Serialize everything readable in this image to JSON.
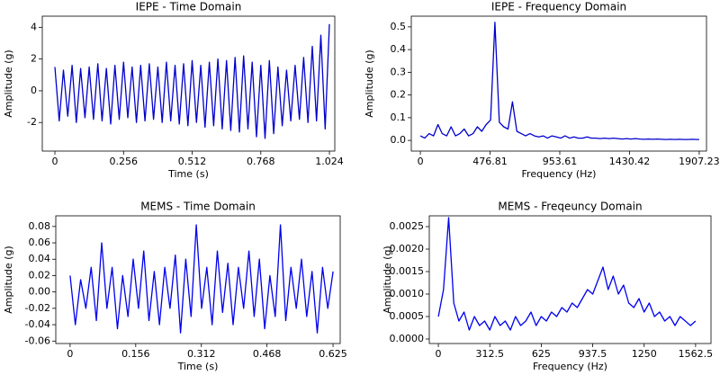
{
  "chart_data": [
    {
      "type": "line",
      "title": "IEPE - Time Domain",
      "xlabel": "Time (s)",
      "ylabel": "Amplitude (g)",
      "color": "#0000cc",
      "x": [
        0,
        0.016,
        0.032,
        0.048,
        0.064,
        0.08,
        0.096,
        0.112,
        0.128,
        0.144,
        0.16,
        0.176,
        0.192,
        0.208,
        0.224,
        0.24,
        0.256,
        0.272,
        0.288,
        0.304,
        0.32,
        0.336,
        0.352,
        0.368,
        0.384,
        0.4,
        0.416,
        0.432,
        0.448,
        0.464,
        0.48,
        0.496,
        0.512,
        0.528,
        0.544,
        0.56,
        0.576,
        0.592,
        0.608,
        0.624,
        0.64,
        0.656,
        0.672,
        0.688,
        0.704,
        0.72,
        0.736,
        0.752,
        0.768,
        0.784,
        0.8,
        0.816,
        0.832,
        0.848,
        0.864,
        0.88,
        0.896,
        0.912,
        0.928,
        0.944,
        0.96,
        0.976,
        0.992,
        1.008,
        1.024
      ],
      "values": [
        1.5,
        -1.9,
        1.3,
        -1.6,
        1.6,
        -2.0,
        1.4,
        -1.7,
        1.5,
        -1.8,
        1.7,
        -1.9,
        1.4,
        -2.1,
        1.6,
        -1.8,
        1.8,
        -1.7,
        1.5,
        -2.0,
        1.6,
        -1.9,
        1.7,
        -1.8,
        1.5,
        -2.0,
        1.8,
        -1.9,
        1.6,
        -2.1,
        1.7,
        -2.2,
        1.9,
        -2.0,
        1.6,
        -2.3,
        1.8,
        -2.2,
        2.0,
        -2.4,
        1.9,
        -2.5,
        2.1,
        -2.6,
        2.2,
        -2.4,
        1.8,
        -2.9,
        1.6,
        -3.0,
        1.9,
        -2.7,
        1.5,
        -2.2,
        1.3,
        -1.9,
        1.6,
        -1.8,
        2.1,
        -2.0,
        2.8,
        -1.9,
        3.5,
        -2.4,
        4.2
      ],
      "xlim": [
        -0.047,
        1.044
      ],
      "ylim": [
        -3.8,
        4.7
      ],
      "xticks": [
        0,
        0.256,
        0.512,
        0.768,
        1.024
      ],
      "yticks": [
        -2,
        0,
        2,
        4
      ]
    },
    {
      "type": "line",
      "title": "IEPE - Frequency Domain",
      "xlabel": "Frequency (Hz)",
      "ylabel": "Amplitude (g)",
      "color": "#0000cc",
      "x": [
        0,
        30,
        60,
        90,
        120,
        150,
        180,
        210,
        240,
        270,
        300,
        330,
        360,
        390,
        420,
        450,
        480,
        510,
        540,
        570,
        600,
        630,
        660,
        690,
        720,
        750,
        780,
        810,
        840,
        870,
        900,
        930,
        960,
        990,
        1020,
        1050,
        1080,
        1110,
        1140,
        1170,
        1200,
        1230,
        1260,
        1290,
        1320,
        1350,
        1380,
        1410,
        1440,
        1470,
        1500,
        1530,
        1560,
        1590,
        1620,
        1650,
        1680,
        1710,
        1740,
        1770,
        1800,
        1830,
        1860,
        1890,
        1907.23
      ],
      "values": [
        0.02,
        0.01,
        0.03,
        0.02,
        0.07,
        0.03,
        0.02,
        0.06,
        0.02,
        0.03,
        0.05,
        0.02,
        0.03,
        0.06,
        0.04,
        0.07,
        0.09,
        0.52,
        0.08,
        0.06,
        0.05,
        0.17,
        0.04,
        0.03,
        0.02,
        0.03,
        0.02,
        0.015,
        0.02,
        0.01,
        0.02,
        0.015,
        0.01,
        0.02,
        0.01,
        0.015,
        0.01,
        0.01,
        0.015,
        0.01,
        0.01,
        0.008,
        0.01,
        0.008,
        0.01,
        0.008,
        0.006,
        0.008,
        0.006,
        0.008,
        0.006,
        0.005,
        0.006,
        0.005,
        0.006,
        0.005,
        0.004,
        0.005,
        0.004,
        0.005,
        0.004,
        0.004,
        0.005,
        0.004,
        0.004
      ],
      "xlim": [
        -62,
        1957
      ],
      "ylim": [
        -0.047,
        0.547
      ],
      "xticks": [
        0,
        476.81,
        953.61,
        1430.42,
        1907.23
      ],
      "yticks": [
        {
          "value": 0,
          "label": "0.0"
        },
        0.1,
        0.2,
        0.3,
        0.4,
        0.5
      ]
    },
    {
      "type": "line",
      "title": "MEMS - Time Domain",
      "xlabel": "Time (s)",
      "ylabel": "Amplitude (g)",
      "color": "#0000ee",
      "x": [
        0,
        0.0125,
        0.025,
        0.0375,
        0.05,
        0.0625,
        0.075,
        0.0875,
        0.1,
        0.1125,
        0.125,
        0.1375,
        0.15,
        0.1625,
        0.175,
        0.1875,
        0.2,
        0.2125,
        0.225,
        0.2375,
        0.25,
        0.2625,
        0.275,
        0.2875,
        0.3,
        0.3125,
        0.325,
        0.3375,
        0.35,
        0.3625,
        0.375,
        0.3875,
        0.4,
        0.4125,
        0.425,
        0.4375,
        0.45,
        0.4625,
        0.475,
        0.4875,
        0.5,
        0.5125,
        0.525,
        0.5375,
        0.55,
        0.5625,
        0.575,
        0.5875,
        0.6,
        0.6125,
        0.625
      ],
      "values": [
        0.02,
        -0.04,
        0.015,
        -0.02,
        0.03,
        -0.035,
        0.06,
        -0.02,
        0.03,
        -0.045,
        0.02,
        -0.03,
        0.04,
        -0.02,
        0.05,
        -0.035,
        0.025,
        -0.04,
        0.03,
        -0.02,
        0.045,
        -0.05,
        0.04,
        -0.03,
        0.082,
        -0.02,
        0.03,
        -0.04,
        0.05,
        -0.025,
        0.035,
        -0.04,
        0.03,
        -0.02,
        0.05,
        -0.03,
        0.04,
        -0.045,
        0.02,
        -0.03,
        0.082,
        -0.035,
        0.03,
        -0.02,
        0.04,
        -0.03,
        0.025,
        -0.05,
        0.03,
        -0.02,
        0.025
      ],
      "xlim": [
        -0.034,
        0.642
      ],
      "ylim": [
        -0.063,
        0.093
      ],
      "xticks": [
        0,
        0.156,
        0.312,
        0.468,
        0.625
      ],
      "yticks": [
        -0.06,
        -0.04,
        -0.02,
        {
          "value": 0,
          "label": "0.00"
        },
        0.02,
        0.04,
        0.06,
        0.08
      ]
    },
    {
      "type": "line",
      "title": "MEMS - Freqeuncy Domain",
      "xlabel": "Frequency (Hz)",
      "ylabel": "Amplitude (g)",
      "color": "#0000ee",
      "x": [
        0,
        31.25,
        62.5,
        93.75,
        125,
        156.25,
        187.5,
        218.75,
        250,
        281.25,
        312.5,
        343.75,
        375,
        406.25,
        437.5,
        468.75,
        500,
        531.25,
        562.5,
        593.75,
        625,
        656.25,
        687.5,
        718.75,
        750,
        781.25,
        812.5,
        843.75,
        875,
        906.25,
        937.5,
        968.75,
        1000,
        1031.25,
        1062.5,
        1093.75,
        1125,
        1156.25,
        1187.5,
        1218.75,
        1250,
        1281.25,
        1312.5,
        1343.75,
        1375,
        1406.25,
        1437.5,
        1468.75,
        1500,
        1531.25,
        1562.5
      ],
      "values": [
        0.0005,
        0.0011,
        0.0027,
        0.0008,
        0.0004,
        0.0006,
        0.0002,
        0.0005,
        0.0003,
        0.0004,
        0.0002,
        0.0005,
        0.0003,
        0.0004,
        0.0002,
        0.0005,
        0.0003,
        0.0004,
        0.0006,
        0.0003,
        0.0005,
        0.0004,
        0.0006,
        0.0005,
        0.0007,
        0.0006,
        0.0008,
        0.0007,
        0.0009,
        0.0011,
        0.001,
        0.0013,
        0.0016,
        0.0011,
        0.0014,
        0.001,
        0.0012,
        0.0008,
        0.0007,
        0.0009,
        0.0006,
        0.0008,
        0.0005,
        0.0006,
        0.0004,
        0.0005,
        0.0003,
        0.0005,
        0.0004,
        0.0003,
        0.0004
      ],
      "xlim": [
        -55,
        1656
      ],
      "ylim": [
        -0.0001,
        0.00274
      ],
      "xticks": [
        0,
        312.5,
        625,
        937.5,
        1250,
        1562.5
      ],
      "yticks": [
        {
          "value": 0,
          "label": "0.0000"
        },
        {
          "value": 0.0005,
          "label": "0.0005"
        },
        {
          "value": 0.001,
          "label": "0.0010"
        },
        {
          "value": 0.0015,
          "label": "0.0015"
        },
        {
          "value": 0.002,
          "label": "0.0020"
        },
        {
          "value": 0.0025,
          "label": "0.0025"
        }
      ]
    }
  ]
}
